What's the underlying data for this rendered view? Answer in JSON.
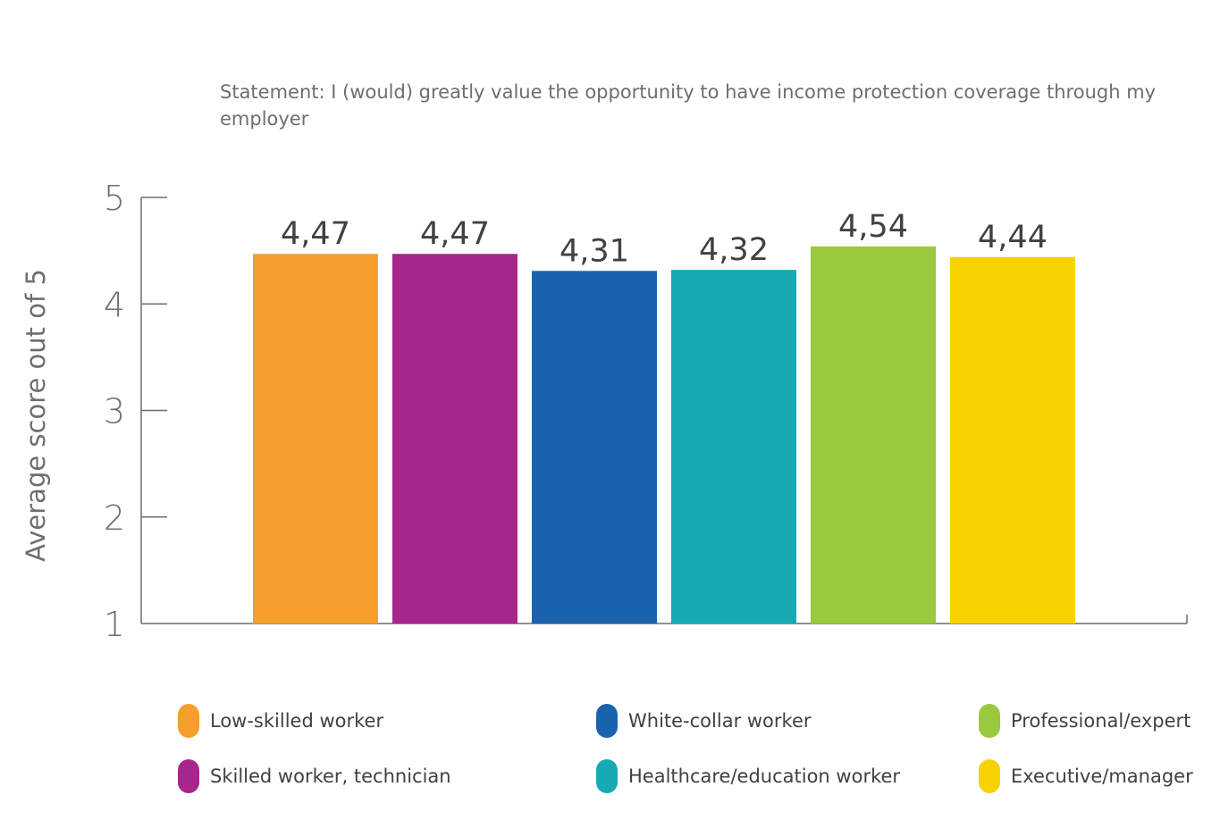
{
  "subtitle": "Statement: I (would) greatly value the opportunity to have income protection coverage through my employer",
  "chart_data": {
    "type": "bar",
    "title": "",
    "subtitle": "Statement: I (would) greatly value the opportunity to have income protection coverage through my employer",
    "ylabel": "Average score out of 5",
    "xlabel": "",
    "ylim": [
      1,
      5
    ],
    "yticks": [
      "1",
      "2",
      "3",
      "4",
      "5"
    ],
    "grid": false,
    "legend_position": "bottom",
    "categories": [
      "Low-skilled worker",
      "Skilled worker, technician",
      "White-collar worker",
      "Healthcare/education worker",
      "Professional/expert",
      "Executive/manager"
    ],
    "values": [
      4.47,
      4.47,
      4.31,
      4.32,
      4.54,
      4.44
    ],
    "value_labels": [
      "4,47",
      "4,47",
      "4,31",
      "4,32",
      "4,54",
      "4,44"
    ],
    "colors": [
      "#f79e2c",
      "#a8258b",
      "#1a63ae",
      "#17aab5",
      "#99c93c",
      "#f8d200"
    ]
  }
}
